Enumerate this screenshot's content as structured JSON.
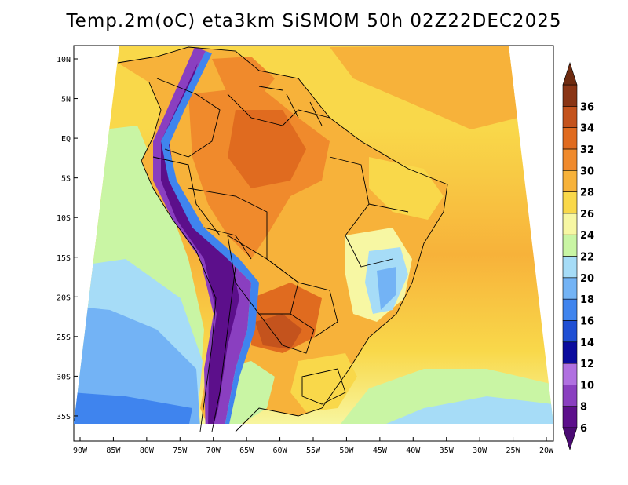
{
  "title": "Temp.2m(oC) eta3km SiSMOM 50h 02Z22DEC2025",
  "map": {
    "variable": "2m temperature",
    "units": "oC",
    "region": "South America",
    "lon_range": [
      -91,
      -19
    ],
    "lat_range": [
      -38,
      12
    ]
  },
  "axes": {
    "lat_ticks": [
      {
        "value": 10,
        "label": "10N"
      },
      {
        "value": 5,
        "label": "5N"
      },
      {
        "value": 0,
        "label": "EQ"
      },
      {
        "value": -5,
        "label": "5S"
      },
      {
        "value": -10,
        "label": "10S"
      },
      {
        "value": -15,
        "label": "15S"
      },
      {
        "value": -20,
        "label": "20S"
      },
      {
        "value": -25,
        "label": "25S"
      },
      {
        "value": -30,
        "label": "30S"
      },
      {
        "value": -35,
        "label": "35S"
      }
    ],
    "lon_ticks": [
      {
        "value": -90,
        "label": "90W"
      },
      {
        "value": -85,
        "label": "85W"
      },
      {
        "value": -80,
        "label": "80W"
      },
      {
        "value": -75,
        "label": "75W"
      },
      {
        "value": -70,
        "label": "70W"
      },
      {
        "value": -65,
        "label": "65W"
      },
      {
        "value": -60,
        "label": "60W"
      },
      {
        "value": -55,
        "label": "55W"
      },
      {
        "value": -50,
        "label": "50W"
      },
      {
        "value": -45,
        "label": "45W"
      },
      {
        "value": -40,
        "label": "40W"
      },
      {
        "value": -35,
        "label": "35W"
      },
      {
        "value": -30,
        "label": "30W"
      },
      {
        "value": -25,
        "label": "25W"
      },
      {
        "value": -20,
        "label": "20W"
      }
    ]
  },
  "colorbar": {
    "levels": [
      "6",
      "8",
      "10",
      "12",
      "14",
      "16",
      "18",
      "20",
      "22",
      "24",
      "26",
      "28",
      "30",
      "32",
      "34",
      "36"
    ],
    "colors": [
      "#5c0f8b",
      "#8a3fc0",
      "#b070e0",
      "#0b0b9e",
      "#1f4fd4",
      "#3f84ee",
      "#73b3f5",
      "#a6dcf7",
      "#c9f5a4",
      "#f7f7a3",
      "#f9d84a",
      "#f7b23a",
      "#f08a2c",
      "#e06b1f",
      "#c4531d",
      "#8a3515"
    ],
    "below_color": "#4b0b73",
    "above_color": "#6e2b10"
  },
  "colors": {
    "ocean_cool": "#73b3f5",
    "ocean_mid": "#c9f5a4",
    "ocean_warm": "#f9d84a",
    "land_hot": "#f08a2c",
    "andes": "#5c0f8b"
  }
}
